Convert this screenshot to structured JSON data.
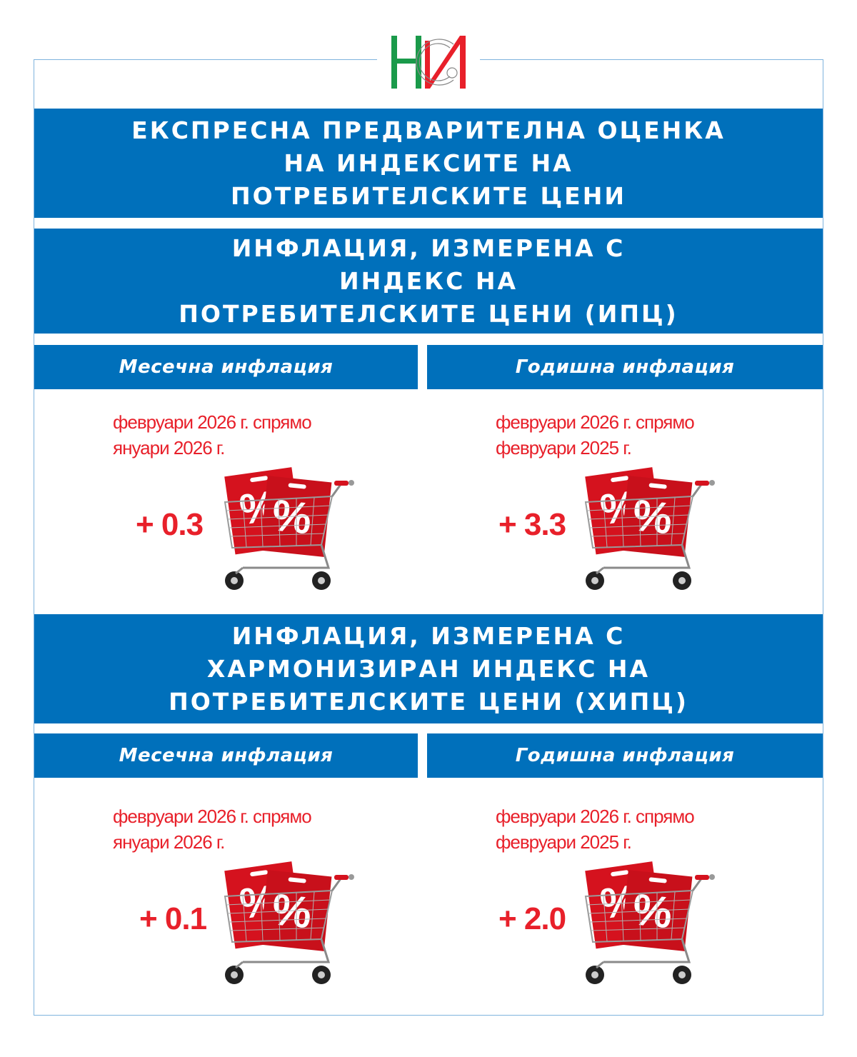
{
  "logo": {
    "text": "НСИ",
    "colors": {
      "green": "#1a9a4a",
      "red": "#e8202a"
    }
  },
  "title": [
    "ЕКСПРЕСНА ПРЕДВАРИТЕЛНА ОЦЕНКА",
    "НА ИНДЕКСИТЕ НА",
    "ПОТРЕБИТЕЛСКИТЕ ЦЕНИ"
  ],
  "colors": {
    "blue": "#0070bb",
    "red": "#e8202a"
  },
  "sections": [
    {
      "heading": [
        "ИНФЛАЦИЯ, ИЗМЕРЕНА С",
        "ИНДЕКС НА",
        "ПОТРЕБИТЕЛСКИТЕ ЦЕНИ (ИПЦ)"
      ],
      "monthly": {
        "label": "Месечна инфлация",
        "period": [
          "февруари 2026 г. спрямо",
          "януари 2026 г."
        ],
        "value": "+ 0.3",
        "icon": "shopping-cart-percent-icon"
      },
      "annual": {
        "label": "Годишна инфлация",
        "period": [
          "февруари 2026 г. спрямо",
          "февруари 2025 г."
        ],
        "value": "+ 3.3",
        "icon": "shopping-cart-percent-icon"
      }
    },
    {
      "heading": [
        "ИНФЛАЦИЯ, ИЗМЕРЕНА С",
        "ХАРМОНИЗИРАН ИНДЕКС НА",
        "ПОТРЕБИТЕЛСКИТЕ ЦЕНИ (ХИПЦ)"
      ],
      "monthly": {
        "label": "Месечна инфлация",
        "period": [
          "февруари 2026 г. спрямо",
          "януари 2026 г."
        ],
        "value": "+ 0.1",
        "icon": "shopping-cart-percent-icon"
      },
      "annual": {
        "label": "Годишна инфлация",
        "period": [
          "февруари 2026 г. спрямо",
          "февруари 2025 г."
        ],
        "value": "+ 2.0",
        "icon": "shopping-cart-percent-icon"
      }
    }
  ]
}
